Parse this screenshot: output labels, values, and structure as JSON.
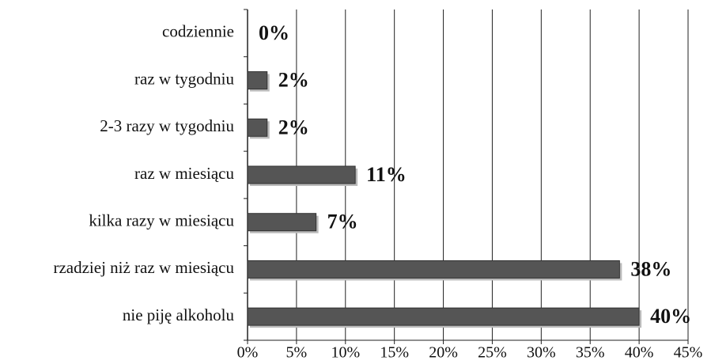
{
  "chart_data": {
    "type": "hbar",
    "categories": [
      "codziennie",
      "raz w tygodniu",
      "2-3 razy w tygodniu",
      "raz w miesiącu",
      "kilka razy w miesiącu",
      "rzadziej niż raz w miesiącu",
      "nie piję alkoholu"
    ],
    "values": [
      0,
      2,
      2,
      11,
      7,
      38,
      40
    ],
    "value_labels": [
      "0%",
      "2%",
      "2%",
      "11%",
      "7%",
      "38%",
      "40%"
    ],
    "color": "#555555",
    "xlim": [
      0,
      45
    ],
    "xticks": [
      {
        "value": 0,
        "label": "0%"
      },
      {
        "value": 5,
        "label": "5%"
      },
      {
        "value": 10,
        "label": "10%"
      },
      {
        "value": 15,
        "label": "15%"
      },
      {
        "value": 20,
        "label": "20%"
      },
      {
        "value": 25,
        "label": "25%"
      },
      {
        "value": 30,
        "label": "30%"
      },
      {
        "value": 35,
        "label": "35%"
      },
      {
        "value": 40,
        "label": "40%"
      },
      {
        "value": 45,
        "label": "45%"
      }
    ],
    "grid": true
  }
}
